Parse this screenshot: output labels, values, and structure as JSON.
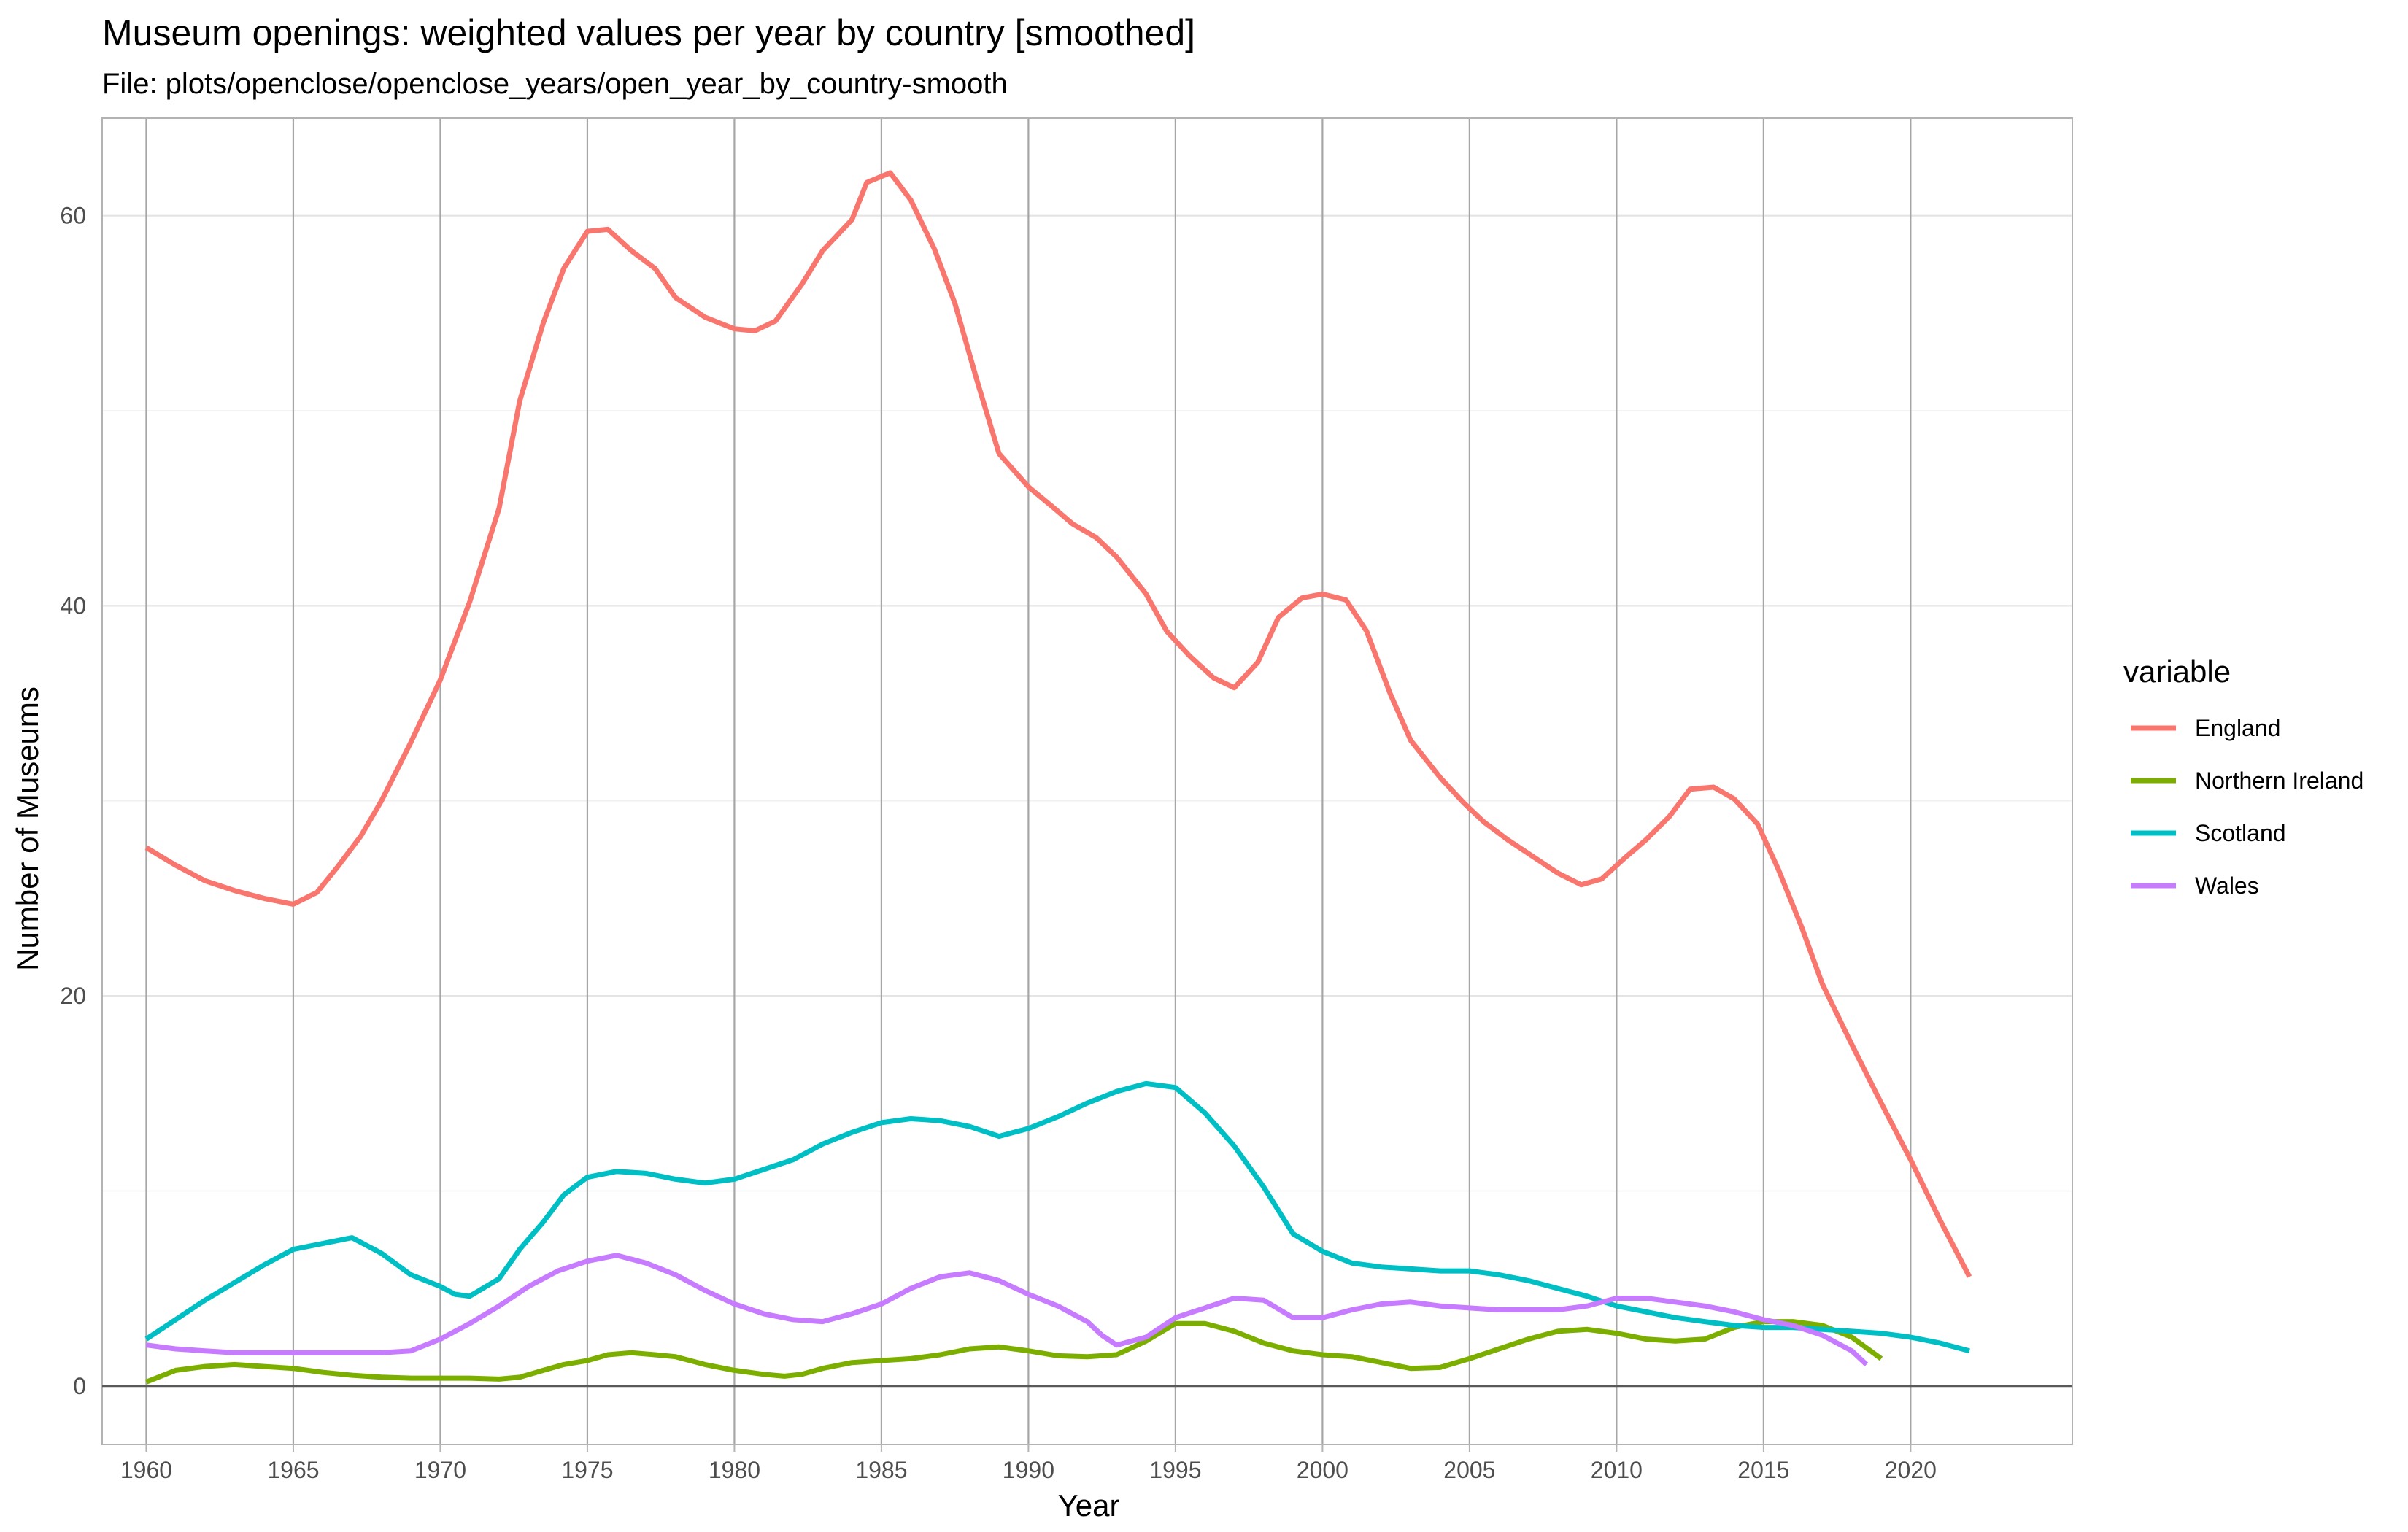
{
  "chart_data": {
    "type": "line",
    "title": "Museum openings: weighted values per year by country [smoothed]",
    "subtitle": "File: plots/openclose/openclose_years/open_year_by_country-smooth",
    "xlabel": "Year",
    "ylabel": "Number of Museums",
    "xlim": [
      1958.5,
      2025.5
    ],
    "ylim": [
      -3,
      65
    ],
    "x_ticks": [
      1960,
      1965,
      1970,
      1975,
      1980,
      1985,
      1990,
      1995,
      2000,
      2005,
      2010,
      2015,
      2020
    ],
    "y_ticks": [
      0,
      20,
      40,
      60
    ],
    "grid": true,
    "hline": 0,
    "legend": {
      "title": "variable",
      "position": "right"
    },
    "series": [
      {
        "name": "England",
        "color": "#F8766D",
        "points": [
          [
            1960,
            27.6
          ],
          [
            1961,
            26.7
          ],
          [
            1962,
            25.9
          ],
          [
            1963,
            25.4
          ],
          [
            1964,
            25
          ],
          [
            1965,
            24.7
          ],
          [
            1965.8,
            25.3
          ],
          [
            1966.5,
            26.6
          ],
          [
            1967.3,
            28.2
          ],
          [
            1968,
            30
          ],
          [
            1969,
            33
          ],
          [
            1970,
            36.2
          ],
          [
            1971,
            40.2
          ],
          [
            1972,
            45
          ],
          [
            1972.7,
            50.5
          ],
          [
            1973.5,
            54.5
          ],
          [
            1974.2,
            57.3
          ],
          [
            1975,
            59.2
          ],
          [
            1975.7,
            59.3
          ],
          [
            1976.5,
            58.2
          ],
          [
            1977.3,
            57.3
          ],
          [
            1978,
            55.8
          ],
          [
            1979,
            54.8
          ],
          [
            1980,
            54.2
          ],
          [
            1980.7,
            54.1
          ],
          [
            1981.4,
            54.6
          ],
          [
            1982.3,
            56.5
          ],
          [
            1983,
            58.2
          ],
          [
            1984,
            59.8
          ],
          [
            1984.5,
            61.7
          ],
          [
            1985.3,
            62.2
          ],
          [
            1986,
            60.8
          ],
          [
            1986.8,
            58.3
          ],
          [
            1987.5,
            55.5
          ],
          [
            1988.3,
            51.3
          ],
          [
            1989,
            47.8
          ],
          [
            1990,
            46.1
          ],
          [
            1990.8,
            45.1
          ],
          [
            1991.5,
            44.2
          ],
          [
            1992.3,
            43.5
          ],
          [
            1993,
            42.5
          ],
          [
            1994,
            40.6
          ],
          [
            1994.7,
            38.7
          ],
          [
            1995.5,
            37.4
          ],
          [
            1996.3,
            36.3
          ],
          [
            1997,
            35.8
          ],
          [
            1997.8,
            37.1
          ],
          [
            1998.5,
            39.4
          ],
          [
            1999.3,
            40.4
          ],
          [
            2000,
            40.6
          ],
          [
            2000.8,
            40.3
          ],
          [
            2001.5,
            38.7
          ],
          [
            2002.3,
            35.5
          ],
          [
            2003,
            33.1
          ],
          [
            2004,
            31.2
          ],
          [
            2004.8,
            29.9
          ],
          [
            2005.5,
            28.9
          ],
          [
            2006.3,
            28
          ],
          [
            2007,
            27.3
          ],
          [
            2008,
            26.3
          ],
          [
            2008.8,
            25.7
          ],
          [
            2009.5,
            26
          ],
          [
            2010.3,
            27.1
          ],
          [
            2011,
            28
          ],
          [
            2011.8,
            29.2
          ],
          [
            2012.5,
            30.6
          ],
          [
            2013.3,
            30.7
          ],
          [
            2014,
            30.1
          ],
          [
            2014.8,
            28.8
          ],
          [
            2015.5,
            26.5
          ],
          [
            2016.3,
            23.5
          ],
          [
            2017,
            20.6
          ],
          [
            2018,
            17.5
          ],
          [
            2019,
            14.5
          ],
          [
            2020,
            11.6
          ],
          [
            2021,
            8.5
          ],
          [
            2022,
            5.6
          ]
        ]
      },
      {
        "name": "Northern Ireland",
        "color": "#7CAE00",
        "points": [
          [
            1960,
            0.2
          ],
          [
            1961,
            0.8
          ],
          [
            1962,
            1
          ],
          [
            1963,
            1.1
          ],
          [
            1964,
            1
          ],
          [
            1965,
            0.9
          ],
          [
            1966,
            0.7
          ],
          [
            1967,
            0.55
          ],
          [
            1968,
            0.45
          ],
          [
            1969,
            0.4
          ],
          [
            1970,
            0.4
          ],
          [
            1971,
            0.4
          ],
          [
            1972,
            0.35
          ],
          [
            1972.7,
            0.45
          ],
          [
            1973.5,
            0.8
          ],
          [
            1974.2,
            1.1
          ],
          [
            1975,
            1.3
          ],
          [
            1975.7,
            1.6
          ],
          [
            1976.5,
            1.7
          ],
          [
            1977.3,
            1.6
          ],
          [
            1978,
            1.5
          ],
          [
            1979,
            1.1
          ],
          [
            1980,
            0.8
          ],
          [
            1981,
            0.6
          ],
          [
            1981.7,
            0.5
          ],
          [
            1982.3,
            0.6
          ],
          [
            1983,
            0.9
          ],
          [
            1984,
            1.2
          ],
          [
            1985,
            1.3
          ],
          [
            1986,
            1.4
          ],
          [
            1987,
            1.6
          ],
          [
            1988,
            1.9
          ],
          [
            1989,
            2
          ],
          [
            1990,
            1.8
          ],
          [
            1991,
            1.55
          ],
          [
            1992,
            1.5
          ],
          [
            1993,
            1.6
          ],
          [
            1994,
            2.3
          ],
          [
            1995,
            3.2
          ],
          [
            1996,
            3.2
          ],
          [
            1997,
            2.8
          ],
          [
            1998,
            2.2
          ],
          [
            1999,
            1.8
          ],
          [
            2000,
            1.6
          ],
          [
            2001,
            1.5
          ],
          [
            2002,
            1.2
          ],
          [
            2003,
            0.9
          ],
          [
            2004,
            0.95
          ],
          [
            2005,
            1.4
          ],
          [
            2006,
            1.9
          ],
          [
            2007,
            2.4
          ],
          [
            2008,
            2.8
          ],
          [
            2009,
            2.9
          ],
          [
            2010,
            2.7
          ],
          [
            2011,
            2.4
          ],
          [
            2012,
            2.3
          ],
          [
            2013,
            2.4
          ],
          [
            2014,
            3
          ],
          [
            2015,
            3.3
          ],
          [
            2016,
            3.3
          ],
          [
            2017,
            3.1
          ],
          [
            2018,
            2.5
          ],
          [
            2019,
            1.4
          ]
        ]
      },
      {
        "name": "Scotland",
        "color": "#00BFC4",
        "points": [
          [
            1960,
            2.4
          ],
          [
            1961,
            3.4
          ],
          [
            1962,
            4.4
          ],
          [
            1963,
            5.3
          ],
          [
            1964,
            6.2
          ],
          [
            1965,
            7
          ],
          [
            1966,
            7.3
          ],
          [
            1967,
            7.6
          ],
          [
            1968,
            6.8
          ],
          [
            1969,
            5.7
          ],
          [
            1970,
            5.1
          ],
          [
            1970.5,
            4.7
          ],
          [
            1971,
            4.6
          ],
          [
            1972,
            5.5
          ],
          [
            1972.7,
            7
          ],
          [
            1973.5,
            8.4
          ],
          [
            1974.2,
            9.8
          ],
          [
            1975,
            10.7
          ],
          [
            1976,
            11
          ],
          [
            1977,
            10.9
          ],
          [
            1978,
            10.6
          ],
          [
            1979,
            10.4
          ],
          [
            1980,
            10.6
          ],
          [
            1981,
            11.1
          ],
          [
            1982,
            11.6
          ],
          [
            1983,
            12.4
          ],
          [
            1984,
            13
          ],
          [
            1985,
            13.5
          ],
          [
            1986,
            13.7
          ],
          [
            1987,
            13.6
          ],
          [
            1988,
            13.3
          ],
          [
            1989,
            12.8
          ],
          [
            1990,
            13.2
          ],
          [
            1991,
            13.8
          ],
          [
            1992,
            14.5
          ],
          [
            1993,
            15.1
          ],
          [
            1994,
            15.5
          ],
          [
            1995,
            15.3
          ],
          [
            1996,
            14
          ],
          [
            1997,
            12.3
          ],
          [
            1998,
            10.2
          ],
          [
            1999,
            7.8
          ],
          [
            2000,
            6.9
          ],
          [
            2001,
            6.3
          ],
          [
            2002,
            6.1
          ],
          [
            2003,
            6
          ],
          [
            2004,
            5.9
          ],
          [
            2005,
            5.9
          ],
          [
            2006,
            5.7
          ],
          [
            2007,
            5.4
          ],
          [
            2008,
            5
          ],
          [
            2009,
            4.6
          ],
          [
            2010,
            4.1
          ],
          [
            2011,
            3.8
          ],
          [
            2012,
            3.5
          ],
          [
            2013,
            3.3
          ],
          [
            2014,
            3.1
          ],
          [
            2015,
            3
          ],
          [
            2016,
            3
          ],
          [
            2017,
            2.9
          ],
          [
            2018,
            2.8
          ],
          [
            2019,
            2.7
          ],
          [
            2020,
            2.5
          ],
          [
            2021,
            2.2
          ],
          [
            2022,
            1.8
          ]
        ]
      },
      {
        "name": "Wales",
        "color": "#C77CFF",
        "points": [
          [
            1960,
            2.1
          ],
          [
            1961,
            1.9
          ],
          [
            1962,
            1.8
          ],
          [
            1963,
            1.7
          ],
          [
            1964,
            1.7
          ],
          [
            1965,
            1.7
          ],
          [
            1966,
            1.7
          ],
          [
            1967,
            1.7
          ],
          [
            1968,
            1.7
          ],
          [
            1969,
            1.8
          ],
          [
            1970,
            2.4
          ],
          [
            1971,
            3.2
          ],
          [
            1972,
            4.1
          ],
          [
            1973,
            5.1
          ],
          [
            1974,
            5.9
          ],
          [
            1975,
            6.4
          ],
          [
            1976,
            6.7
          ],
          [
            1977,
            6.3
          ],
          [
            1978,
            5.7
          ],
          [
            1979,
            4.9
          ],
          [
            1980,
            4.2
          ],
          [
            1981,
            3.7
          ],
          [
            1982,
            3.4
          ],
          [
            1983,
            3.3
          ],
          [
            1984,
            3.7
          ],
          [
            1985,
            4.2
          ],
          [
            1986,
            5
          ],
          [
            1987,
            5.6
          ],
          [
            1988,
            5.8
          ],
          [
            1989,
            5.4
          ],
          [
            1990,
            4.7
          ],
          [
            1991,
            4.1
          ],
          [
            1992,
            3.3
          ],
          [
            1992.5,
            2.6
          ],
          [
            1993,
            2.1
          ],
          [
            1994,
            2.5
          ],
          [
            1995,
            3.5
          ],
          [
            1996,
            4
          ],
          [
            1997,
            4.5
          ],
          [
            1998,
            4.4
          ],
          [
            1999,
            3.5
          ],
          [
            2000,
            3.5
          ],
          [
            2001,
            3.9
          ],
          [
            2002,
            4.2
          ],
          [
            2003,
            4.3
          ],
          [
            2004,
            4.1
          ],
          [
            2005,
            4
          ],
          [
            2006,
            3.9
          ],
          [
            2007,
            3.9
          ],
          [
            2008,
            3.9
          ],
          [
            2009,
            4.1
          ],
          [
            2010,
            4.5
          ],
          [
            2011,
            4.5
          ],
          [
            2012,
            4.3
          ],
          [
            2013,
            4.1
          ],
          [
            2014,
            3.8
          ],
          [
            2015,
            3.4
          ],
          [
            2016,
            3.1
          ],
          [
            2017,
            2.6
          ],
          [
            2018,
            1.8
          ],
          [
            2018.5,
            1.1
          ]
        ]
      }
    ]
  }
}
